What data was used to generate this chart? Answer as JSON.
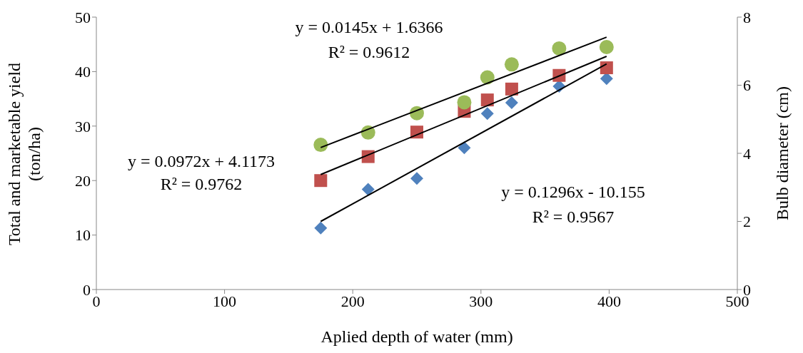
{
  "chart_data": {
    "type": "scatter",
    "xlabel": "Aplied depth of water (mm)",
    "ylabel": "Total and marketable yield (ton/ha)",
    "y2label": "Bulb diameter (cm)",
    "xlim": [
      0,
      500
    ],
    "xticks": [
      0,
      100,
      200,
      300,
      400,
      500
    ],
    "ylim": [
      0,
      50
    ],
    "yticks": [
      0,
      10,
      20,
      30,
      40,
      50
    ],
    "y2lim": [
      0,
      8
    ],
    "y2ticks": [
      0,
      2,
      4,
      6,
      8
    ],
    "series": [
      {
        "marker": "diamond",
        "color": "#4f81bd",
        "x": [
          175,
          212,
          250,
          287,
          305,
          324,
          361,
          398
        ],
        "values": [
          11.3,
          18.4,
          20.4,
          26,
          32.3,
          34.3,
          37.3,
          38.7
        ]
      },
      {
        "marker": "square",
        "color": "#c0504d",
        "x": [
          175,
          212,
          250,
          287,
          305,
          324,
          361,
          398
        ],
        "values": [
          20,
          24.4,
          28.9,
          32.7,
          34.8,
          36.8,
          39.3,
          40.7
        ]
      },
      {
        "marker": "circle",
        "color": "#9bbb59",
        "axis": "y2",
        "x": [
          175,
          212,
          250,
          287,
          305,
          324,
          361,
          398
        ],
        "values": [
          4.25,
          4.61,
          5.18,
          5.5,
          6.23,
          6.61,
          7.08,
          7.12
        ]
      },
      {
        "type": "line",
        "color": "#000000",
        "x": [
          175,
          398
        ],
        "values": [
          12.5,
          41.4
        ]
      },
      {
        "type": "line",
        "color": "#000000",
        "x": [
          175,
          398
        ],
        "values": [
          21.1,
          42.8
        ]
      },
      {
        "type": "line",
        "color": "#000000",
        "axis": "y2",
        "x": [
          175,
          398
        ],
        "values": [
          4.17,
          7.41
        ]
      }
    ],
    "annotations": [
      "y = 0.0145x + 1.6366",
      "R² = 0.9612",
      "y = 0.0972x + 4.1173",
      "R² = 0.9762",
      "y = 0.1296x - 10.155",
      "R² = 0.9567"
    ]
  }
}
